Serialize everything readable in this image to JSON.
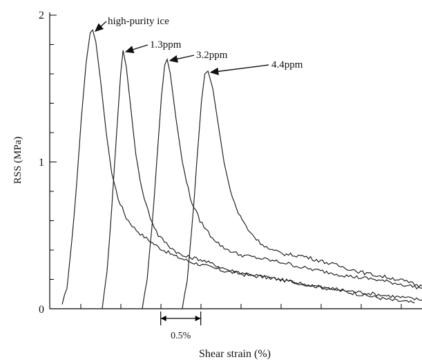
{
  "chart_data": {
    "type": "line",
    "title": "",
    "xlabel": "Shear strain (%)",
    "ylabel": "RSS (MPa)",
    "ylim": [
      0,
      2
    ],
    "y_ticks": [
      "0",
      "1",
      "2"
    ],
    "scale_bar": {
      "label": "0.5%",
      "start_pct": 1.23,
      "end_pct": 1.73
    },
    "grid": false,
    "legend": "none",
    "series": [
      {
        "name": "high-purity ice",
        "label": "high-purity ice",
        "points": [
          [
            0,
            0.02
          ],
          [
            0.06,
            0.15
          ],
          [
            0.12,
            0.45
          ],
          [
            0.18,
            0.85
          ],
          [
            0.24,
            1.3
          ],
          [
            0.3,
            1.68
          ],
          [
            0.35,
            1.88
          ],
          [
            0.38,
            1.9
          ],
          [
            0.42,
            1.82
          ],
          [
            0.48,
            1.55
          ],
          [
            0.55,
            1.2
          ],
          [
            0.62,
            0.92
          ],
          [
            0.7,
            0.75
          ],
          [
            0.8,
            0.62
          ],
          [
            0.9,
            0.55
          ],
          [
            1.0,
            0.5
          ],
          [
            1.2,
            0.42
          ],
          [
            1.4,
            0.36
          ],
          [
            1.6,
            0.32
          ],
          [
            1.8,
            0.29
          ],
          [
            2.0,
            0.26
          ],
          [
            2.3,
            0.23
          ],
          [
            2.6,
            0.21
          ],
          [
            2.9,
            0.18
          ],
          [
            3.2,
            0.15
          ],
          [
            3.5,
            0.12
          ],
          [
            3.8,
            0.09
          ],
          [
            4.1,
            0.06
          ],
          [
            4.4,
            0.04
          ]
        ]
      },
      {
        "name": "1.3ppm",
        "label": "1.3ppm",
        "points": [
          [
            0.5,
            0.0
          ],
          [
            0.56,
            0.25
          ],
          [
            0.62,
            0.7
          ],
          [
            0.68,
            1.2
          ],
          [
            0.73,
            1.6
          ],
          [
            0.76,
            1.76
          ],
          [
            0.8,
            1.65
          ],
          [
            0.86,
            1.35
          ],
          [
            0.92,
            1.05
          ],
          [
            1.0,
            0.8
          ],
          [
            1.1,
            0.62
          ],
          [
            1.2,
            0.5
          ],
          [
            1.35,
            0.42
          ],
          [
            1.5,
            0.36
          ],
          [
            1.7,
            0.34
          ],
          [
            1.9,
            0.3
          ],
          [
            2.1,
            0.26
          ],
          [
            2.4,
            0.23
          ],
          [
            2.7,
            0.2
          ],
          [
            3.0,
            0.17
          ],
          [
            3.3,
            0.14
          ],
          [
            3.6,
            0.12
          ],
          [
            3.9,
            0.1
          ],
          [
            4.2,
            0.08
          ],
          [
            4.5,
            0.06
          ]
        ]
      },
      {
        "name": "3.2ppm",
        "label": "3.2ppm",
        "points": [
          [
            1.0,
            0.0
          ],
          [
            1.06,
            0.2
          ],
          [
            1.12,
            0.55
          ],
          [
            1.18,
            1.0
          ],
          [
            1.24,
            1.45
          ],
          [
            1.28,
            1.66
          ],
          [
            1.31,
            1.7
          ],
          [
            1.35,
            1.6
          ],
          [
            1.42,
            1.3
          ],
          [
            1.5,
            1.0
          ],
          [
            1.6,
            0.75
          ],
          [
            1.72,
            0.6
          ],
          [
            1.85,
            0.5
          ],
          [
            2.0,
            0.42
          ],
          [
            2.2,
            0.37
          ],
          [
            2.4,
            0.35
          ],
          [
            2.6,
            0.33
          ],
          [
            2.8,
            0.31
          ],
          [
            3.0,
            0.28
          ],
          [
            3.3,
            0.25
          ],
          [
            3.6,
            0.22
          ],
          [
            3.9,
            0.2
          ],
          [
            4.2,
            0.17
          ],
          [
            4.5,
            0.14
          ]
        ]
      },
      {
        "name": "4.4ppm",
        "label": "4.4ppm",
        "points": [
          [
            1.5,
            0.0
          ],
          [
            1.56,
            0.2
          ],
          [
            1.62,
            0.55
          ],
          [
            1.68,
            1.0
          ],
          [
            1.74,
            1.42
          ],
          [
            1.78,
            1.6
          ],
          [
            1.82,
            1.62
          ],
          [
            1.88,
            1.5
          ],
          [
            1.95,
            1.25
          ],
          [
            2.02,
            1.0
          ],
          [
            2.1,
            0.8
          ],
          [
            2.2,
            0.65
          ],
          [
            2.32,
            0.54
          ],
          [
            2.45,
            0.46
          ],
          [
            2.6,
            0.4
          ],
          [
            2.8,
            0.37
          ],
          [
            3.0,
            0.36
          ],
          [
            3.2,
            0.33
          ],
          [
            3.4,
            0.3
          ],
          [
            3.6,
            0.27
          ],
          [
            3.8,
            0.24
          ],
          [
            4.0,
            0.22
          ],
          [
            4.2,
            0.2
          ],
          [
            4.5,
            0.15
          ]
        ]
      }
    ]
  }
}
